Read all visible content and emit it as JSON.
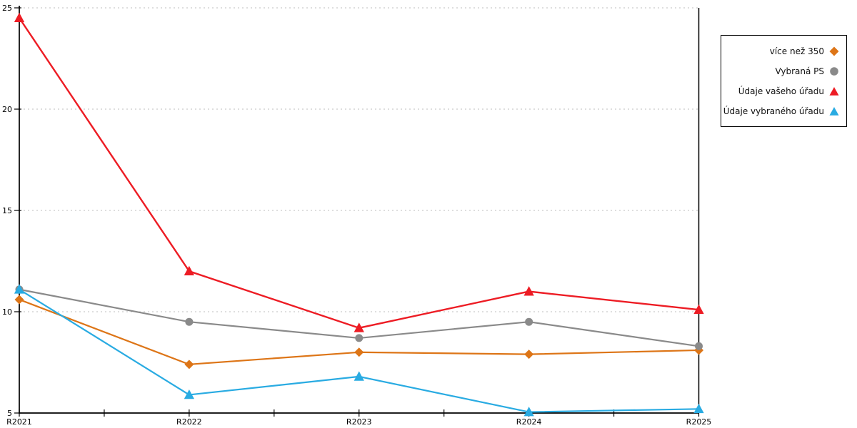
{
  "chart_data": {
    "type": "line",
    "title": "",
    "xlabel": "",
    "ylabel": "",
    "categories": [
      "R2021",
      "R2022",
      "R2023",
      "R2024",
      "R2025"
    ],
    "series": [
      {
        "name": "více než 350",
        "color": "#DD7517",
        "marker": "diamond",
        "values": [
          10.6,
          7.4,
          8.0,
          7.9,
          8.1
        ]
      },
      {
        "name": "Vybraná PS",
        "color": "#8A8A8A",
        "marker": "circle",
        "values": [
          11.1,
          9.5,
          8.7,
          9.5,
          8.3
        ]
      },
      {
        "name": "Údaje vašeho úřadu",
        "color": "#ED1C24",
        "marker": "triangle",
        "values": [
          24.5,
          12.0,
          9.2,
          11.0,
          10.1
        ]
      },
      {
        "name": "Údaje vybraného úřadu",
        "color": "#29ABE2",
        "marker": "triangle",
        "values": [
          11.1,
          5.9,
          6.8,
          5.05,
          5.2
        ]
      }
    ],
    "ylim": [
      5,
      25
    ],
    "yticks": [
      5,
      10,
      15,
      20,
      25
    ],
    "grid": "horizontal-dotted",
    "legend_position": "right"
  },
  "colors": {
    "axis": "#000000",
    "gridline": "#BDBDBD",
    "background": "#FFFFFF",
    "tick_label": "#000000"
  }
}
